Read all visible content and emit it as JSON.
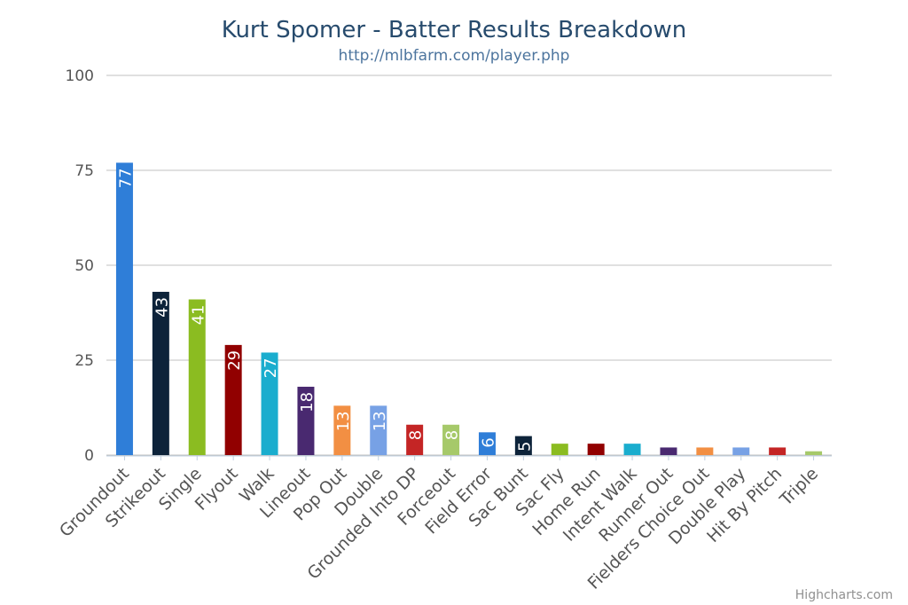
{
  "chart_data": {
    "type": "bar",
    "title": "Kurt Spomer - Batter Results Breakdown",
    "subtitle": "http://mlbfarm.com/player.php",
    "xlabel": "",
    "ylabel": "",
    "ylim": [
      0,
      100
    ],
    "yticks": [
      0,
      25,
      50,
      75,
      100
    ],
    "grid": true,
    "legend": "none",
    "categories": [
      "Groundout",
      "Strikeout",
      "Single",
      "Flyout",
      "Walk",
      "Lineout",
      "Pop Out",
      "Double",
      "Grounded Into DP",
      "Forceout",
      "Field Error",
      "Sac Bunt",
      "Sac Fly",
      "Home Run",
      "Intent Walk",
      "Runner Out",
      "Fielders Choice Out",
      "Double Play",
      "Hit By Pitch",
      "Triple"
    ],
    "values": [
      77,
      43,
      41,
      29,
      27,
      18,
      13,
      13,
      8,
      8,
      6,
      5,
      3,
      3,
      3,
      2,
      2,
      2,
      2,
      1
    ],
    "data_labels": [
      "77",
      "43",
      "41",
      "29",
      "27",
      "18",
      "13",
      "13",
      "8",
      "8",
      "6",
      "5",
      "",
      "",
      "",
      "",
      "",
      "",
      "",
      ""
    ],
    "colors": [
      "#2f7ed8",
      "#0d233a",
      "#8bbc21",
      "#910000",
      "#1aadce",
      "#492970",
      "#f28f43",
      "#77a1e5",
      "#c42525",
      "#a6c96a",
      "#2f7ed8",
      "#0d233a",
      "#8bbc21",
      "#910000",
      "#1aadce",
      "#492970",
      "#f28f43",
      "#77a1e5",
      "#c42525",
      "#a6c96a"
    ]
  },
  "credits": "Highcharts.com"
}
